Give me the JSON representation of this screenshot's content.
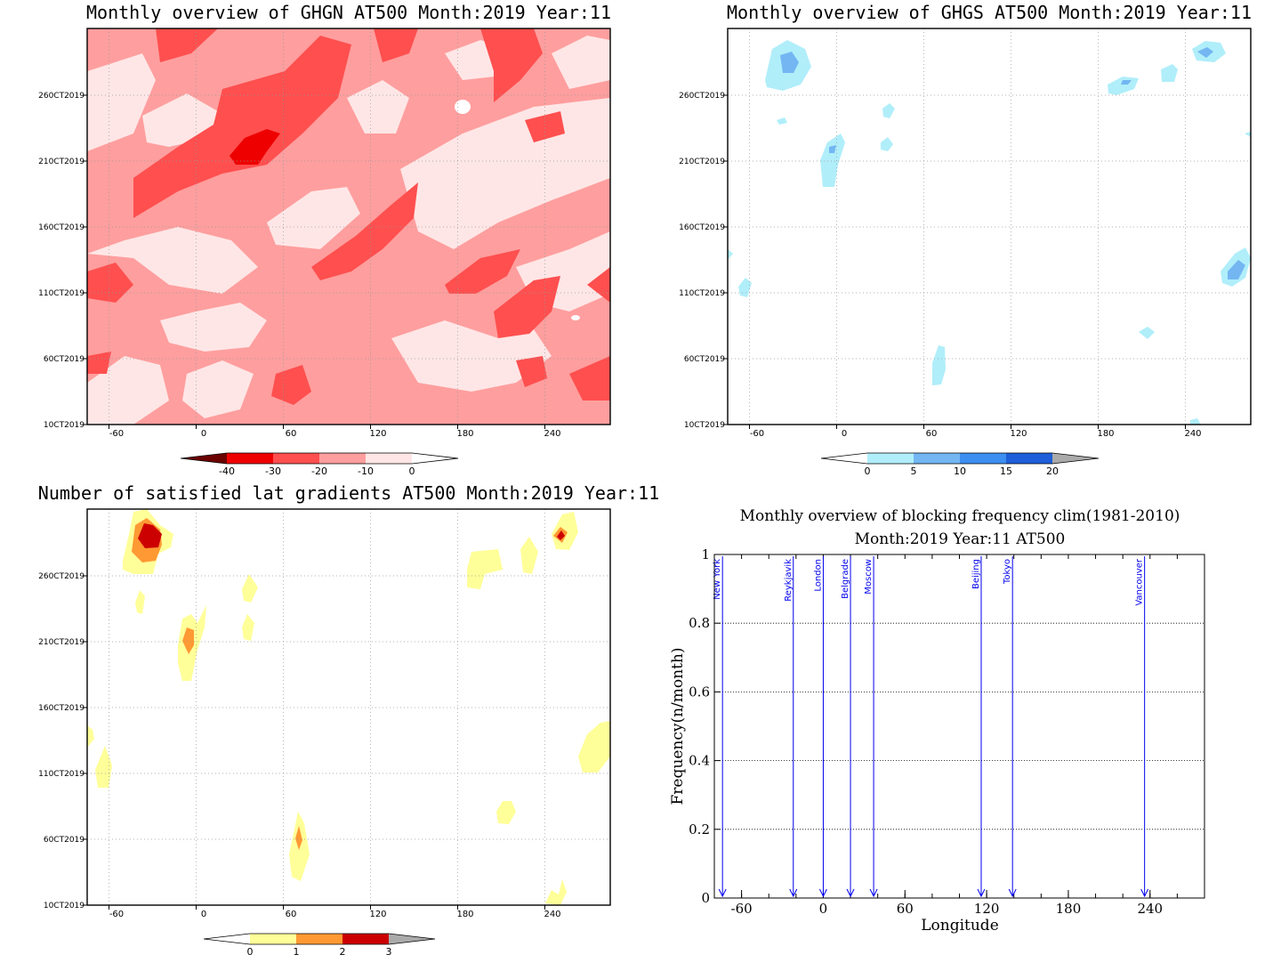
{
  "panels": [
    {
      "title": "Monthly overview of GHGN AT500 Month:2019 Year:11",
      "ytick_labels": [
        "10CT2019",
        "60CT2019",
        "110CT2019",
        "160CT2019",
        "210CT2019",
        "260CT2019"
      ],
      "xtick_labels": [
        "-60",
        "0",
        "60",
        "120",
        "180",
        "240"
      ],
      "colorbar": {
        "labels": [
          "-40",
          "-30",
          "-20",
          "-10",
          "0"
        ],
        "colors": [
          "#6b0000",
          "#ee0000",
          "#ff4f4f",
          "#ff9e9e",
          "#ffe6e6"
        ]
      },
      "chart_data": {
        "type": "heatmap",
        "title": "Monthly overview of GHGN AT500 Month:2019 Year:11",
        "xlim": [
          -75,
          285
        ],
        "xticks": [
          -60,
          0,
          60,
          120,
          180,
          240
        ],
        "levels": [
          -40,
          -30,
          -20,
          -10,
          0
        ]
      }
    },
    {
      "title": "Monthly overview of GHGS AT500 Month:2019 Year:11",
      "ytick_labels": [
        "10CT2019",
        "60CT2019",
        "110CT2019",
        "160CT2019",
        "210CT2019",
        "260CT2019"
      ],
      "xtick_labels": [
        "-60",
        "0",
        "60",
        "120",
        "180",
        "240"
      ],
      "colorbar": {
        "labels": [
          "0",
          "5",
          "10",
          "15",
          "20"
        ],
        "colors": [
          "#b0eefa",
          "#73b6f2",
          "#3c8ef0",
          "#1e5ed8",
          "#aaaaaa"
        ]
      },
      "chart_data": {
        "type": "heatmap",
        "title": "Monthly overview of GHGS AT500 Month:2019 Year:11",
        "xlim": [
          -75,
          285
        ],
        "xticks": [
          -60,
          0,
          60,
          120,
          180,
          240
        ],
        "levels": [
          0,
          5,
          10,
          15,
          20
        ]
      }
    },
    {
      "title": "Number of satisfied lat gradients AT500 Month:2019 Year:11",
      "ytick_labels": [
        "10CT2019",
        "60CT2019",
        "110CT2019",
        "160CT2019",
        "210CT2019",
        "260CT2019"
      ],
      "xtick_labels": [
        "-60",
        "0",
        "60",
        "120",
        "180",
        "240"
      ],
      "colorbar": {
        "labels": [
          "0",
          "1",
          "2",
          "3"
        ],
        "colors": [
          "#ffff99",
          "#ff9933",
          "#cc0000",
          "#aaaaaa"
        ]
      },
      "chart_data": {
        "type": "heatmap",
        "title": "Number of satisfied lat gradients AT500 Month:2019 Year:11",
        "xlim": [
          -75,
          285
        ],
        "xticks": [
          -60,
          0,
          60,
          120,
          180,
          240
        ],
        "levels": [
          0,
          1,
          2,
          3
        ]
      }
    }
  ],
  "blocking": {
    "title_line1": "Monthly overview of blocking frequency clim(1981-2010)",
    "title_line2": "Month:2019 Year:11  AT500",
    "xlabel": "Longitude",
    "ylabel": "Frequency(n/month)",
    "xtick_labels": [
      "-60",
      "0",
      "60",
      "120",
      "180",
      "240"
    ],
    "ytick_labels": [
      "0",
      "0.2",
      "0.4",
      "0.6",
      "0.8",
      "1"
    ],
    "cities": [
      {
        "name": "New York",
        "lon": -74
      },
      {
        "name": "Reykjavik",
        "lon": -22
      },
      {
        "name": "London",
        "lon": 0
      },
      {
        "name": "Belgrade",
        "lon": 20
      },
      {
        "name": "Moscow",
        "lon": 37
      },
      {
        "name": "Beijing",
        "lon": 116
      },
      {
        "name": "Tokyo",
        "lon": 139
      },
      {
        "name": "Vancouver",
        "lon": 236
      }
    ],
    "chart_data": {
      "type": "line",
      "xlim": [
        -80,
        280
      ],
      "ylim": [
        0,
        1
      ],
      "xticks": [
        -60,
        0,
        60,
        120,
        180,
        240
      ],
      "yticks": [
        0,
        0.2,
        0.4,
        0.6,
        0.8,
        1
      ],
      "grid": true,
      "xlabel": "Longitude",
      "ylabel": "Frequency(n/month)",
      "series": []
    }
  }
}
